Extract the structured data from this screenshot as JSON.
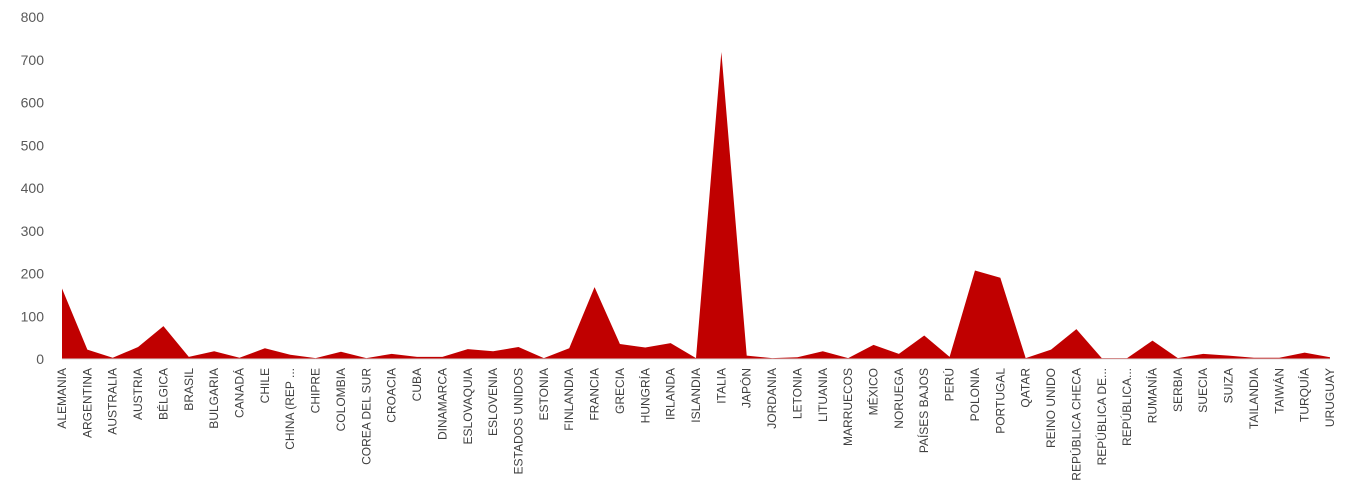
{
  "chart_data": {
    "type": "area",
    "title": "",
    "xlabel": "",
    "ylabel": "",
    "ylim": [
      0,
      800
    ],
    "yticks": [
      0,
      100,
      200,
      300,
      400,
      500,
      600,
      700,
      800
    ],
    "grid": false,
    "legend": "none",
    "color": "#c00000",
    "categories": [
      "ALEMANIA",
      "ARGENTINA",
      "AUSTRALIA",
      "AUSTRIA",
      "BÉLGICA",
      "BRASIL",
      "BULGARIA",
      "CANADÁ",
      "CHILE",
      "CHINA (REP ...",
      "CHIPRE",
      "COLOMBIA",
      "COREA DEL SUR",
      "CROACIA",
      "CUBA",
      "DINAMARCA",
      "ESLOVAQUIA",
      "ESLOVENIA",
      "ESTADOS UNIDOS",
      "ESTONIA",
      "FINLANDIA",
      "FRANCIA",
      "GRECIA",
      "HUNGRÍA",
      "IRLANDA",
      "ISLANDIA",
      "ITALIA",
      "JAPÓN",
      "JORDANIA",
      "LETONIA",
      "LITUANIA",
      "MARRUECOS",
      "MÉXICO",
      "NORUEGA",
      "PAÍSES BAJOS",
      "PERÚ",
      "POLONIA",
      "PORTUGAL",
      "QATAR",
      "REINO UNIDO",
      "REPÚBLICA CHECA",
      "REPÚBLICA DE...",
      "REPÚBLICA...",
      "RUMANÍA",
      "SERBIA",
      "SUECIA",
      "SUIZA",
      "TAILANDIA",
      "TAIWÁN",
      "TURQUÍA",
      "URUGUAY"
    ],
    "values": [
      165,
      22,
      3,
      28,
      77,
      5,
      18,
      3,
      25,
      10,
      2,
      17,
      2,
      12,
      5,
      5,
      23,
      18,
      28,
      2,
      25,
      168,
      35,
      27,
      37,
      2,
      718,
      8,
      2,
      4,
      18,
      2,
      33,
      12,
      55,
      5,
      207,
      190,
      2,
      22,
      70,
      2,
      2,
      43,
      2,
      12,
      8,
      3,
      3,
      15,
      4
    ]
  }
}
